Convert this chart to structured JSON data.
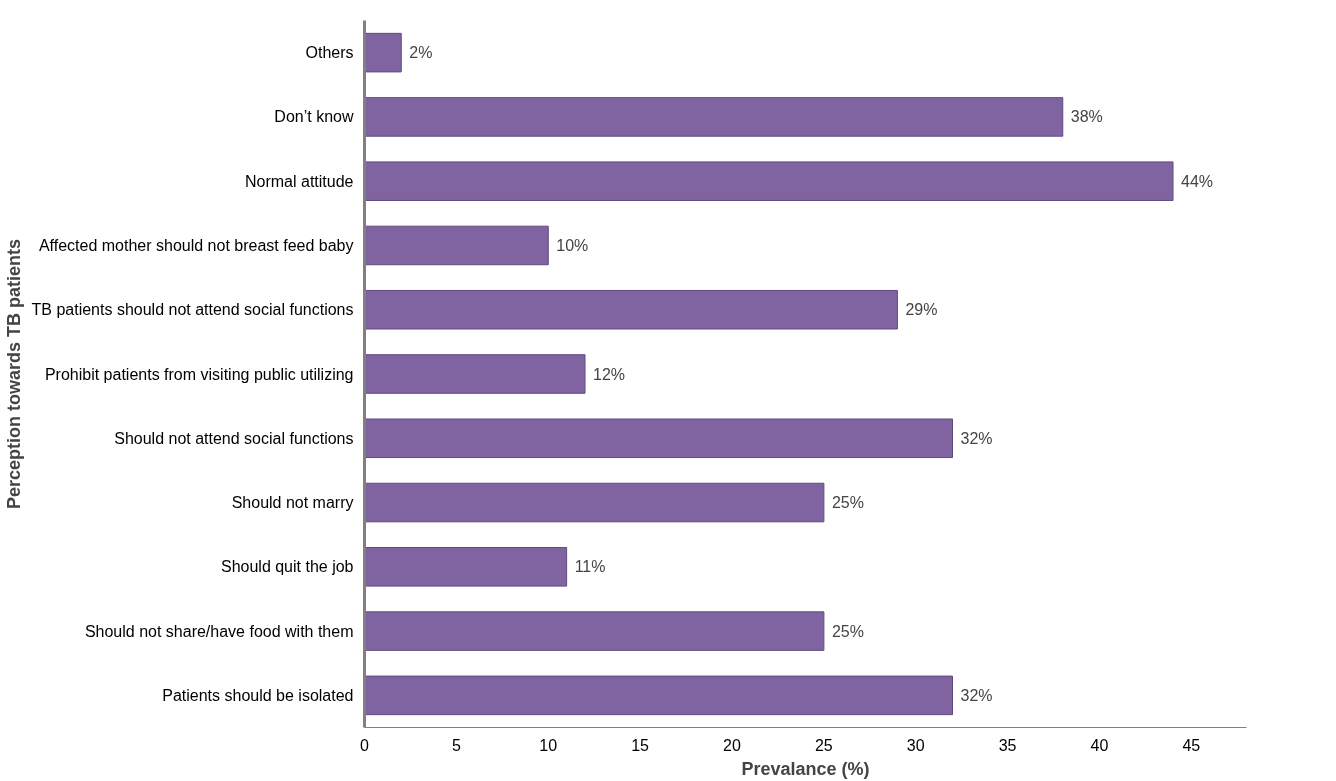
{
  "chart_data": {
    "type": "bar",
    "orientation": "horizontal",
    "xlabel": "Prevalance (%)",
    "ylabel": "Perception towards TB patients",
    "categories": [
      "Others",
      "Don’t know",
      "Normal attitude",
      "Affected mother should not breast feed baby",
      "TB patients should not attend social functions",
      "Prohibit patients from visiting public utilizing",
      "Should not attend social functions",
      "Should not marry",
      "Should quit the job",
      "Should not share/have food with them",
      "Patients should be isolated"
    ],
    "values": [
      2,
      38,
      44,
      10,
      29,
      12,
      32,
      25,
      11,
      25,
      32
    ],
    "value_labels": [
      "2%",
      "38%",
      "44%",
      "10%",
      "29%",
      "12%",
      "32%",
      "25%",
      "11%",
      "25%",
      "32%"
    ],
    "color": "#8064a2",
    "xlim": [
      0,
      48
    ],
    "xticks": [
      0,
      5,
      10,
      15,
      20,
      25,
      30,
      35,
      40,
      45
    ],
    "grid": false
  }
}
